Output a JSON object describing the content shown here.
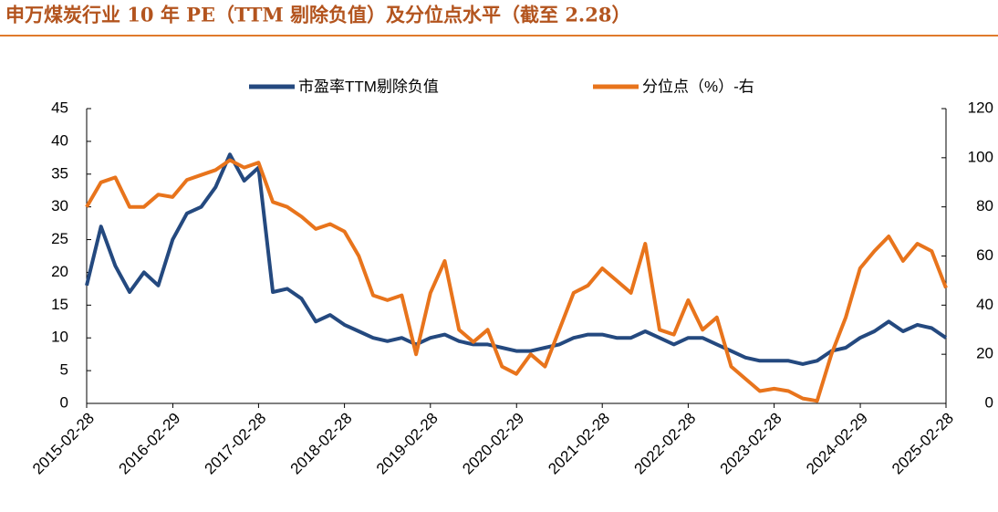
{
  "chart_data": {
    "type": "line",
    "title": "申万煤炭行业 10 年 PE（TTM 剔除负值）及分位点水平（截至 2.28）",
    "x": [
      "2015-02",
      "2015-04",
      "2015-06",
      "2015-08",
      "2015-10",
      "2015-12",
      "2016-02",
      "2016-04",
      "2016-06",
      "2016-08",
      "2016-10",
      "2016-12",
      "2017-02",
      "2017-04",
      "2017-06",
      "2017-08",
      "2017-10",
      "2017-12",
      "2018-02",
      "2018-04",
      "2018-06",
      "2018-08",
      "2018-10",
      "2018-12",
      "2019-02",
      "2019-04",
      "2019-06",
      "2019-08",
      "2019-10",
      "2019-12",
      "2020-02",
      "2020-04",
      "2020-06",
      "2020-08",
      "2020-10",
      "2020-12",
      "2021-02",
      "2021-04",
      "2021-06",
      "2021-08",
      "2021-10",
      "2021-12",
      "2022-02",
      "2022-04",
      "2022-06",
      "2022-08",
      "2022-10",
      "2022-12",
      "2023-02",
      "2023-04",
      "2023-06",
      "2023-08",
      "2023-10",
      "2023-12",
      "2024-02",
      "2024-04",
      "2024-06",
      "2024-08",
      "2024-10",
      "2024-12",
      "2025-02"
    ],
    "series": [
      {
        "name": "市盈率TTM剔除负值",
        "color": "#24497f",
        "axis": "y",
        "values": [
          18,
          27,
          21,
          17,
          20,
          18,
          25,
          29,
          30,
          33,
          38,
          34,
          36,
          17,
          17.5,
          16,
          12.5,
          13.5,
          12,
          11,
          10,
          9.5,
          10,
          9,
          10,
          10.5,
          9.5,
          9,
          9,
          8.5,
          8,
          8,
          8.5,
          9,
          10,
          10.5,
          10.5,
          10,
          10,
          11,
          10,
          9,
          10,
          10,
          9,
          8,
          7,
          6.5,
          6.5,
          6.5,
          6,
          6.5,
          8,
          8.5,
          10,
          11,
          12.5,
          11,
          12,
          11.5,
          10
        ]
      },
      {
        "name": "分位点（%）-右",
        "color": "#e8741c",
        "axis": "y2",
        "values": [
          80,
          90,
          92,
          80,
          80,
          85,
          84,
          91,
          93,
          95,
          99,
          96,
          98,
          82,
          80,
          76,
          71,
          73,
          70,
          60,
          44,
          42,
          44,
          20,
          45,
          58,
          30,
          25,
          30,
          15,
          12,
          20,
          15,
          30,
          45,
          48,
          55,
          50,
          45,
          65,
          30,
          28,
          42,
          30,
          35,
          15,
          10,
          5,
          6,
          5,
          2,
          1,
          20,
          35,
          55,
          62,
          68,
          58,
          65,
          62,
          47
        ]
      }
    ],
    "xlim": [
      "2015-02-28",
      "2025-02-28"
    ],
    "xticks": [
      "2015-02-28",
      "2016-02-29",
      "2017-02-28",
      "2018-02-28",
      "2019-02-28",
      "2020-02-29",
      "2021-02-28",
      "2022-02-28",
      "2023-02-28",
      "2024-02-29",
      "2025-02-28"
    ],
    "ylim": [
      0,
      45
    ],
    "yticks": [
      0,
      5,
      10,
      15,
      20,
      25,
      30,
      35,
      40,
      45
    ],
    "y2lim": [
      0,
      120
    ],
    "y2ticks": [
      0,
      20,
      40,
      60,
      80,
      100,
      120
    ]
  }
}
